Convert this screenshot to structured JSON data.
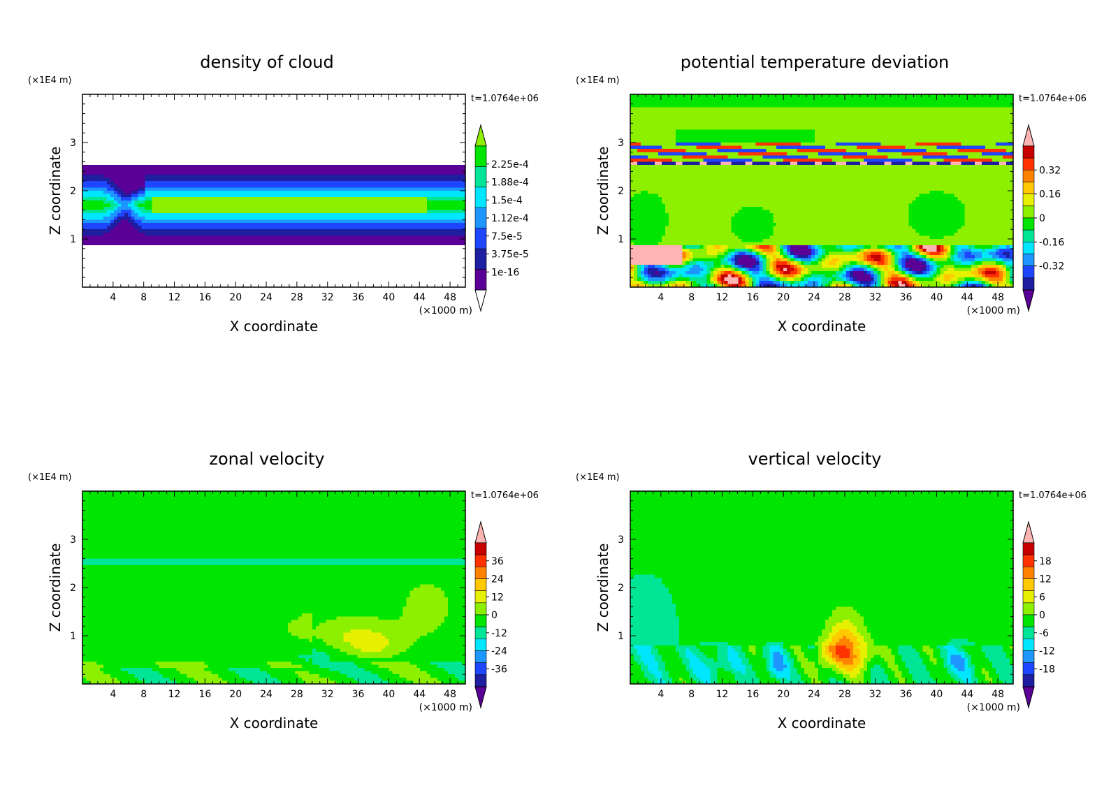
{
  "figure": {
    "time_label": "t=1.0764e+06",
    "x_axis_label": "X coordinate",
    "z_axis_label": "Z coordinate",
    "x_unit": "(×1000 m)",
    "z_unit": "(×1E4 m)"
  },
  "colors": {
    "palette": [
      "#5a0096",
      "#1e1ea0",
      "#1e46ff",
      "#1e96ff",
      "#00e6ff",
      "#00e696",
      "#00e600",
      "#8cf000",
      "#e6f000",
      "#ffc800",
      "#ff8200",
      "#ff3200",
      "#c80000",
      "#ffb4b4"
    ],
    "cloud_palette": [
      "#ffffff",
      "#5a0096",
      "#1e1ea0",
      "#1e46ff",
      "#1e96ff",
      "#00e6ff",
      "#00e696",
      "#00e600",
      "#8cf000"
    ]
  },
  "chart_data": [
    {
      "type": "heatmap",
      "title": "density of cloud",
      "xlabel": "X coordinate",
      "ylabel": "Z coordinate",
      "xlim": [
        0,
        50
      ],
      "ylim": [
        0,
        4
      ],
      "x_ticks": [
        "4",
        "8",
        "12",
        "16",
        "20",
        "24",
        "28",
        "32",
        "36",
        "40",
        "44",
        "48"
      ],
      "y_ticks": [
        "1",
        "2",
        "3"
      ],
      "time": "t=1.0764e+06",
      "colorbar_labels": [
        "2.25e-4",
        "1.88e-4",
        "1.5e-4",
        "1.12e-4",
        "7.5e-5",
        "3.75e-5",
        "1e-16"
      ],
      "colorbar_levels": [
        0.000225,
        0.000188,
        0.00015,
        0.000112,
        7.5e-05,
        3.75e-05,
        1e-16
      ]
    },
    {
      "type": "heatmap",
      "title": "potential temperature deviation",
      "xlabel": "X coordinate",
      "ylabel": "Z coordinate",
      "xlim": [
        0,
        50
      ],
      "ylim": [
        0,
        4
      ],
      "x_ticks": [
        "4",
        "8",
        "12",
        "16",
        "20",
        "24",
        "28",
        "32",
        "36",
        "40",
        "44",
        "48"
      ],
      "y_ticks": [
        "1",
        "2",
        "3"
      ],
      "time": "t=1.0764e+06",
      "colorbar_labels": [
        "0.32",
        "0.16",
        "0",
        "-0.16",
        "-0.32"
      ],
      "colorbar_levels": [
        0.32,
        0.16,
        0,
        -0.16,
        -0.32
      ]
    },
    {
      "type": "heatmap",
      "title": "zonal velocity",
      "xlabel": "X coordinate",
      "ylabel": "Z coordinate",
      "xlim": [
        0,
        50
      ],
      "ylim": [
        0,
        4
      ],
      "x_ticks": [
        "4",
        "8",
        "12",
        "16",
        "20",
        "24",
        "28",
        "32",
        "36",
        "40",
        "44",
        "48"
      ],
      "y_ticks": [
        "1",
        "2",
        "3"
      ],
      "time": "t=1.0764e+06",
      "colorbar_labels": [
        "36",
        "24",
        "12",
        "0",
        "-12",
        "-24",
        "-36"
      ],
      "colorbar_levels": [
        36,
        24,
        12,
        0,
        -12,
        -24,
        -36
      ]
    },
    {
      "type": "heatmap",
      "title": "vertical velocity",
      "xlabel": "X coordinate",
      "ylabel": "Z coordinate",
      "xlim": [
        0,
        50
      ],
      "ylim": [
        0,
        4
      ],
      "x_ticks": [
        "4",
        "8",
        "12",
        "16",
        "20",
        "24",
        "28",
        "32",
        "36",
        "40",
        "44",
        "48"
      ],
      "y_ticks": [
        "1",
        "2",
        "3"
      ],
      "time": "t=1.0764e+06",
      "colorbar_labels": [
        "18",
        "12",
        "6",
        "0",
        "-6",
        "-12",
        "-18"
      ],
      "colorbar_levels": [
        18,
        12,
        6,
        0,
        -6,
        -12,
        -18
      ]
    }
  ]
}
